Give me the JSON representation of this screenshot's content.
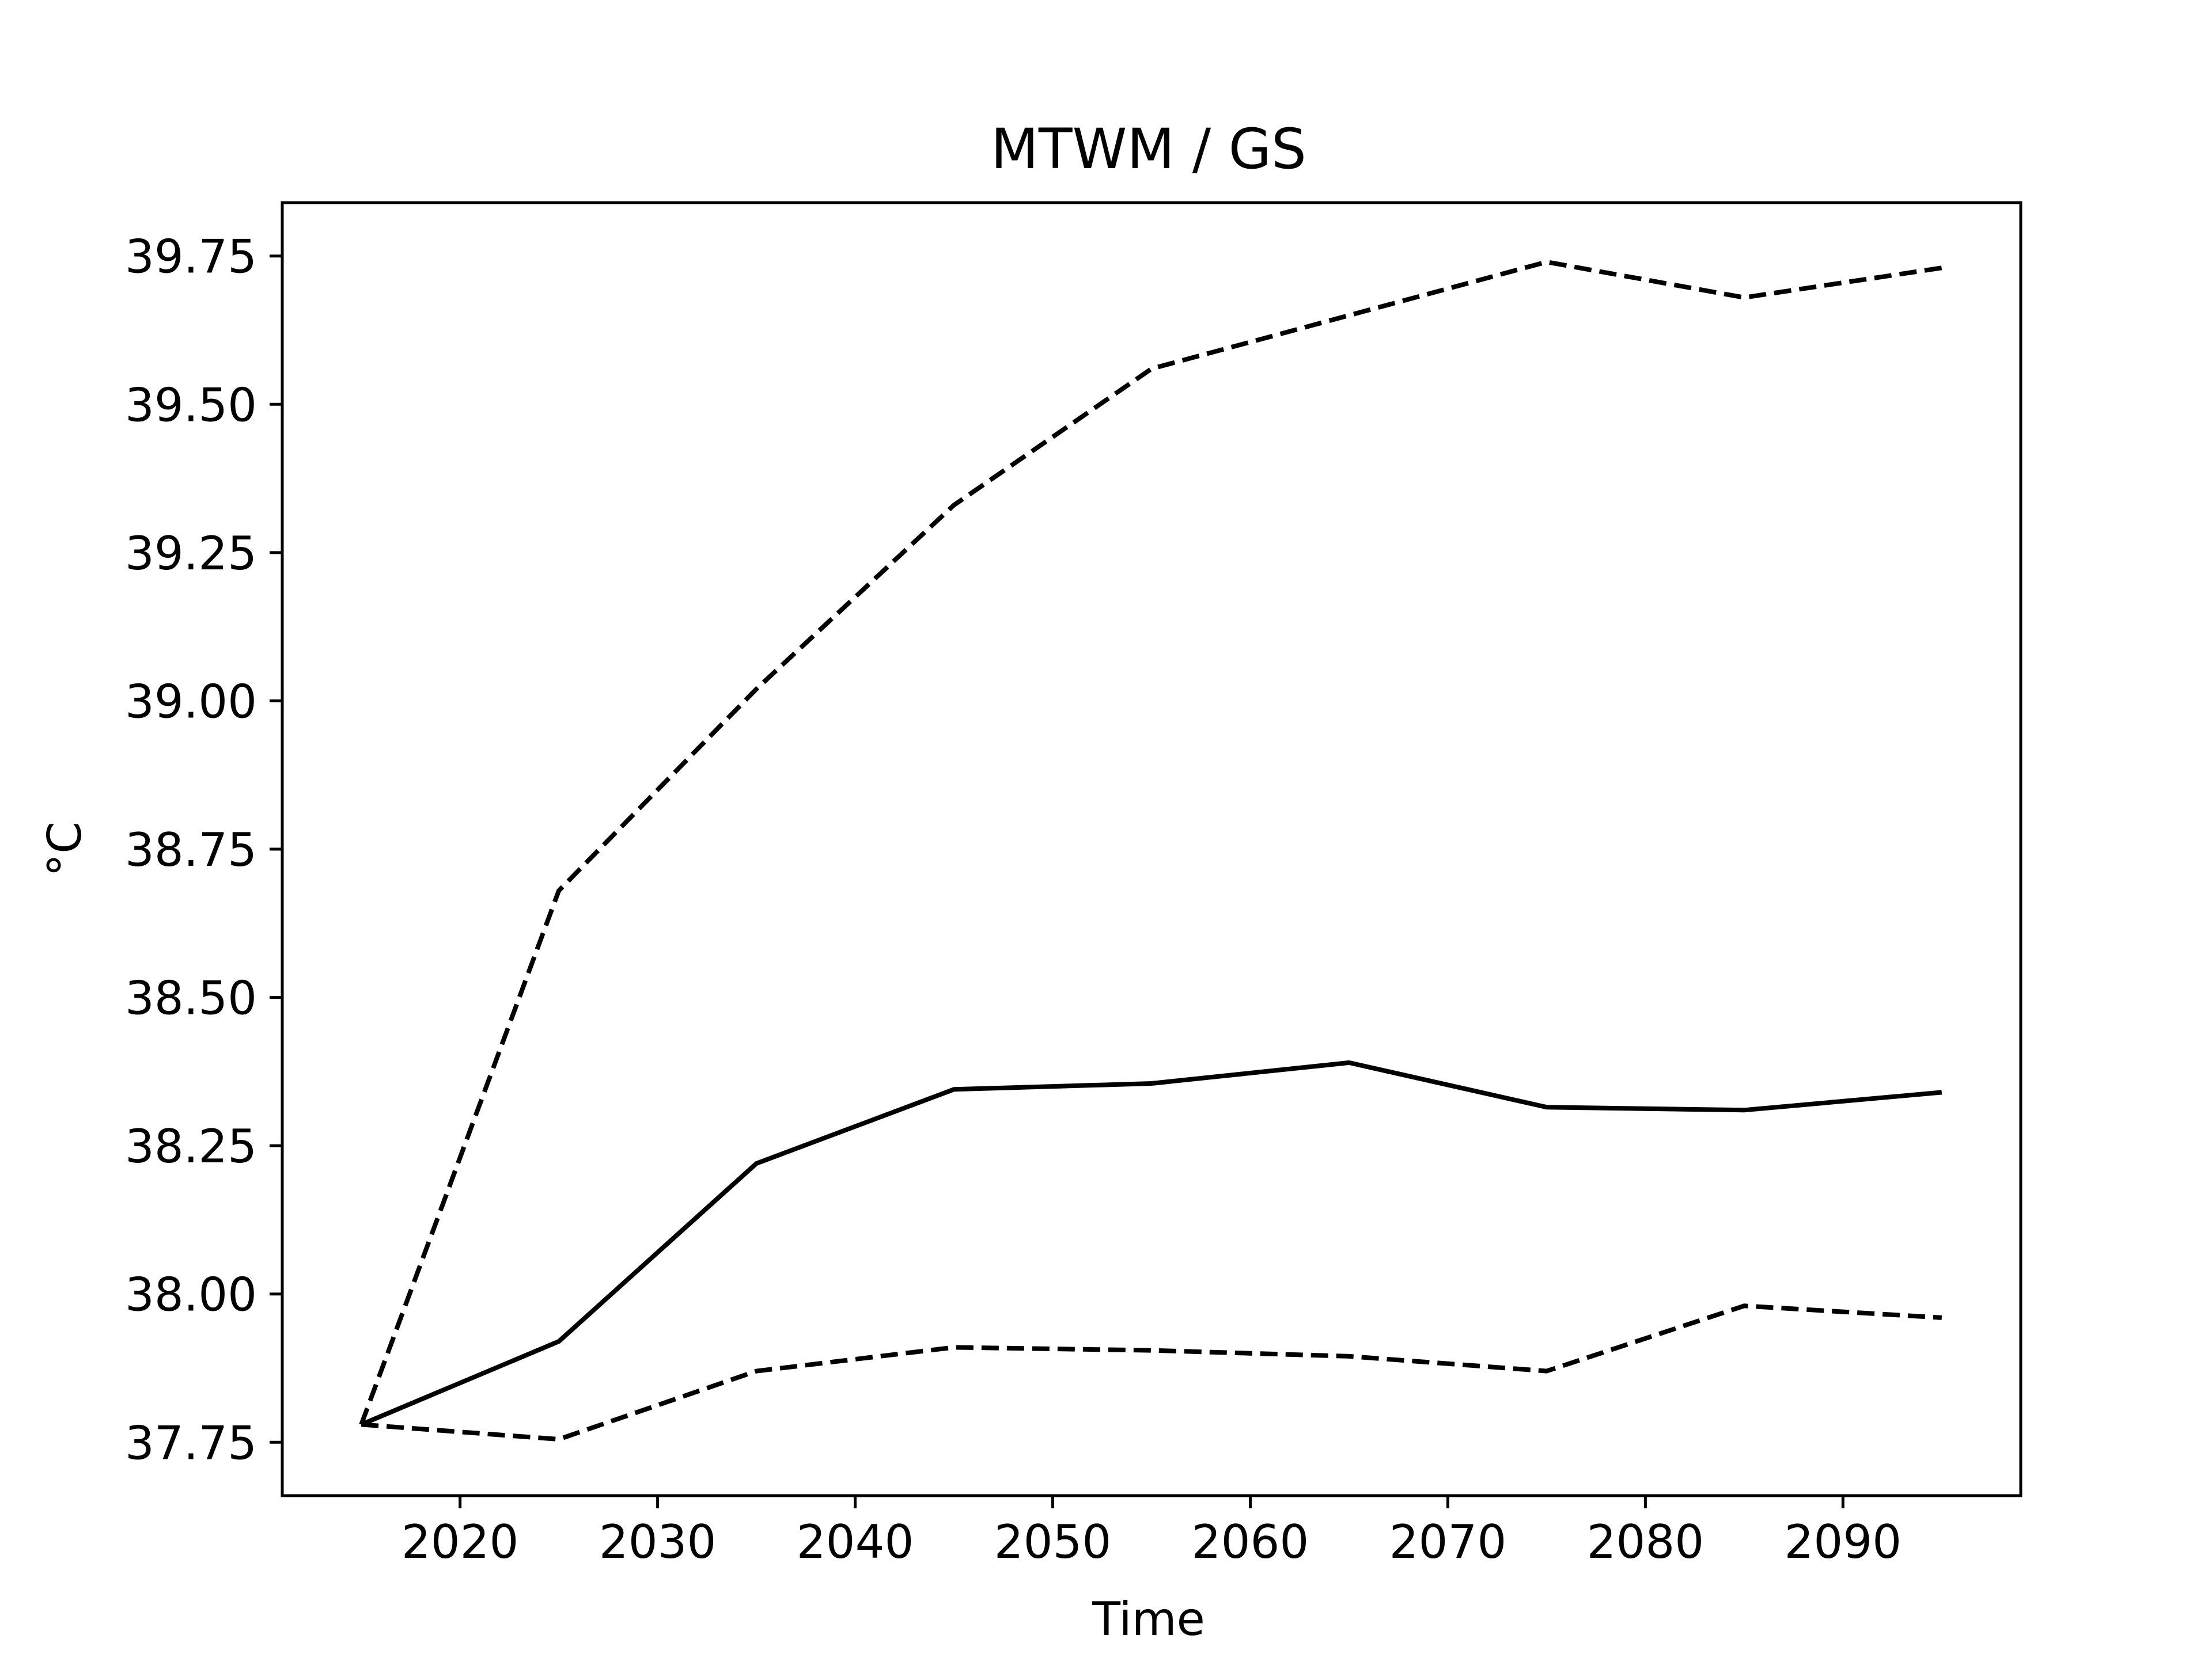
{
  "chart_data": {
    "type": "line",
    "title": "MTWM / GS",
    "xlabel": "Time",
    "ylabel": "°C",
    "xlim": [
      2011,
      2099
    ],
    "ylim": [
      37.66,
      39.84
    ],
    "xticks": [
      2020,
      2030,
      2040,
      2050,
      2060,
      2070,
      2080,
      2090
    ],
    "xtick_labels": [
      "2020",
      "2030",
      "2040",
      "2050",
      "2060",
      "2070",
      "2080",
      "2090"
    ],
    "yticks": [
      37.75,
      38.0,
      38.25,
      38.5,
      38.75,
      39.0,
      39.25,
      39.5,
      39.75
    ],
    "ytick_labels": [
      "37.75",
      "38.00",
      "38.25",
      "38.50",
      "38.75",
      "39.00",
      "39.25",
      "39.50",
      "39.75"
    ],
    "grid": false,
    "legend": false,
    "x": [
      2015,
      2025,
      2035,
      2045,
      2055,
      2065,
      2075,
      2085,
      2095
    ],
    "series": [
      {
        "style": "dashed",
        "color": "#000000",
        "values": [
          37.78,
          38.68,
          39.02,
          39.33,
          39.56,
          39.65,
          39.74,
          39.68,
          39.73
        ]
      },
      {
        "style": "solid",
        "color": "#000000",
        "values": [
          37.78,
          37.92,
          38.22,
          38.345,
          38.355,
          38.39,
          38.315,
          38.31,
          38.34
        ]
      },
      {
        "style": "dashed",
        "color": "#000000",
        "values": [
          37.78,
          37.755,
          37.87,
          37.91,
          37.905,
          37.895,
          37.87,
          37.98,
          37.96
        ]
      }
    ]
  }
}
